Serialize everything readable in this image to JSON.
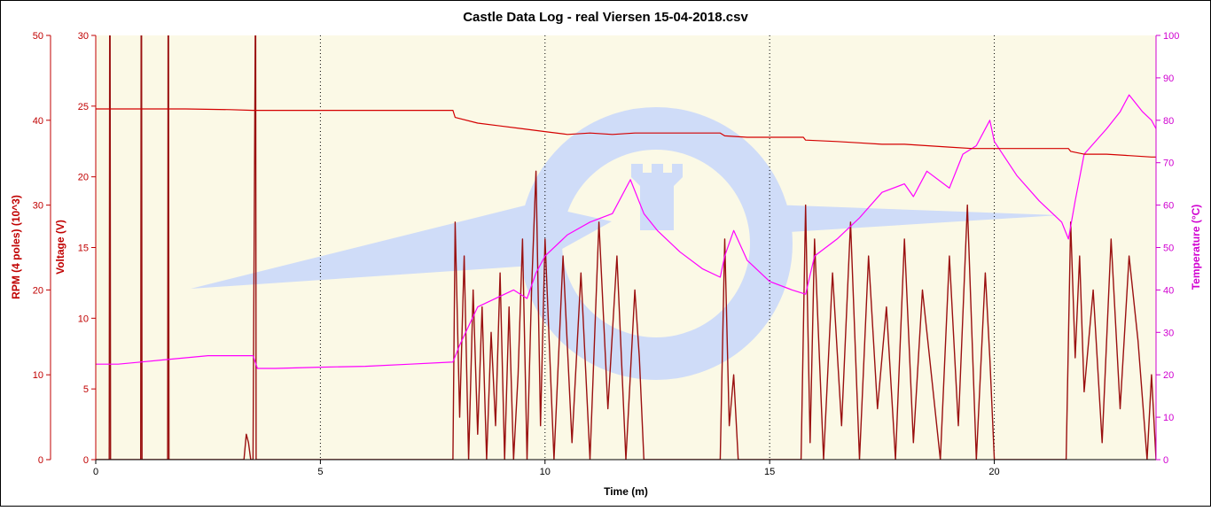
{
  "chart_data": {
    "type": "line",
    "title": "Castle Data Log - real Viersen 15-04-2018.csv",
    "xlabel": "Time (m)",
    "xlim": [
      0,
      23.6
    ],
    "x_ticks": [
      "0",
      "5",
      "10",
      "15",
      "20"
    ],
    "axes": {
      "rpm": {
        "label": "RPM (4 poles) (10^3)",
        "lim": [
          0,
          50
        ],
        "ticks": [
          "0",
          "10",
          "20",
          "30",
          "40",
          "50"
        ]
      },
      "voltage": {
        "label": "Voltage (V)",
        "lim": [
          0,
          30
        ],
        "ticks": [
          "0",
          "5",
          "10",
          "15",
          "20",
          "25",
          "30"
        ]
      },
      "temperature": {
        "label": "Temperature (°C)",
        "lim": [
          0,
          100
        ],
        "ticks": [
          "0",
          "10",
          "20",
          "30",
          "40",
          "50",
          "60",
          "70",
          "80",
          "90",
          "100"
        ]
      }
    },
    "grid": "vertical dotted at major x ticks",
    "colors": {
      "voltage": "#d40000",
      "rpm": "#9a1010",
      "temperature": "#ff00ff",
      "axis_red": "#c00000",
      "temperature_axis": "#d000d0",
      "plot_bg": "#fbf9e6",
      "watermark": "#cfdcf8"
    },
    "series": [
      {
        "key": "voltage",
        "axis": "voltage",
        "x": [
          0,
          1,
          2,
          3,
          3.5,
          4,
          5,
          6,
          7,
          7.95,
          8.0,
          8.5,
          9,
          9.5,
          10,
          10.5,
          11,
          11.5,
          12,
          12.5,
          13,
          13.5,
          13.9,
          14.0,
          14.5,
          15,
          15.5,
          15.75,
          15.8,
          16.5,
          17,
          17.5,
          18,
          18.5,
          19,
          19.5,
          20,
          20.5,
          21,
          21.5,
          21.65,
          21.7,
          22,
          22.5,
          23,
          23.5,
          23.6
        ],
        "y": [
          24.8,
          24.8,
          24.8,
          24.75,
          24.7,
          24.7,
          24.7,
          24.7,
          24.7,
          24.7,
          24.2,
          23.8,
          23.6,
          23.4,
          23.2,
          23.0,
          23.1,
          23.0,
          23.1,
          23.1,
          23.1,
          23.1,
          23.1,
          22.9,
          22.8,
          22.8,
          22.8,
          22.8,
          22.6,
          22.5,
          22.4,
          22.3,
          22.3,
          22.2,
          22.1,
          22.0,
          22.0,
          22.0,
          22.0,
          22.0,
          22.0,
          21.8,
          21.6,
          21.6,
          21.5,
          21.4,
          21.4
        ]
      },
      {
        "key": "temperature",
        "axis": "temperature",
        "x": [
          0,
          0.5,
          1,
          1.5,
          2,
          2.5,
          3,
          3.5,
          3.6,
          4,
          5,
          6,
          7,
          7.95,
          8.1,
          8.5,
          9,
          9.3,
          9.6,
          9.8,
          10.0,
          10.5,
          11,
          11.5,
          11.9,
          12.2,
          12.5,
          13,
          13.5,
          13.9,
          14.0,
          14.2,
          14.5,
          15,
          15.5,
          15.8,
          16.0,
          16.5,
          17,
          17.5,
          18,
          18.2,
          18.5,
          19,
          19.3,
          19.6,
          19.9,
          20.0,
          20.5,
          21,
          21.5,
          21.65,
          21.8,
          22,
          22.5,
          22.8,
          23.0,
          23.3,
          23.5,
          23.6
        ],
        "y": [
          22.5,
          22.5,
          23.0,
          23.5,
          24.0,
          24.5,
          24.5,
          24.5,
          21.5,
          21.5,
          21.8,
          22.0,
          22.5,
          23.0,
          27.0,
          36.0,
          38.5,
          40.0,
          38.0,
          44.0,
          48.0,
          53.0,
          56.0,
          58.0,
          66.0,
          58.0,
          54.0,
          49.0,
          45.0,
          43.0,
          48.0,
          54.0,
          47.0,
          42.0,
          40.0,
          39.0,
          48.0,
          52.0,
          57.0,
          63.0,
          65.0,
          62.0,
          68.0,
          64.0,
          72.0,
          74.0,
          80.0,
          75.0,
          67.0,
          61.0,
          56.0,
          52.0,
          61.0,
          72.0,
          78.0,
          82.0,
          86.0,
          82.0,
          80.0,
          78.0
        ]
      },
      {
        "key": "rpm",
        "axis": "rpm",
        "x": [
          0,
          0.3,
          0.31,
          0.32,
          0.33,
          1.0,
          1.01,
          1.02,
          1.03,
          1.6,
          1.61,
          1.62,
          1.63,
          3.3,
          3.35,
          3.4,
          3.45,
          3.5,
          3.55,
          3.56,
          3.57,
          7.95,
          8.0,
          8.1,
          8.2,
          8.3,
          8.4,
          8.5,
          8.6,
          8.7,
          8.8,
          8.9,
          9.0,
          9.1,
          9.2,
          9.3,
          9.4,
          9.5,
          9.6,
          9.7,
          9.8,
          9.9,
          10.0,
          10.2,
          10.4,
          10.6,
          10.8,
          11.0,
          11.2,
          11.4,
          11.6,
          11.8,
          12.0,
          12.1,
          12.2,
          13.9,
          14.0,
          14.1,
          14.2,
          14.3,
          14.4,
          15.7,
          15.8,
          15.9,
          16.0,
          16.2,
          16.4,
          16.6,
          16.8,
          17.0,
          17.2,
          17.4,
          17.6,
          17.8,
          18.0,
          18.2,
          18.4,
          18.6,
          18.8,
          19.0,
          19.2,
          19.4,
          19.6,
          19.8,
          19.9,
          20.0,
          21.6,
          21.7,
          21.8,
          21.9,
          22.0,
          22.2,
          22.4,
          22.6,
          22.8,
          23.0,
          23.2,
          23.4,
          23.5,
          23.6
        ],
        "y": [
          0,
          0,
          50,
          50,
          0,
          0,
          50,
          50,
          0,
          0,
          50,
          50,
          0,
          0,
          3,
          2,
          0,
          0,
          50,
          50,
          0,
          0,
          28,
          5,
          24,
          0,
          20,
          3,
          18,
          0,
          15,
          4,
          22,
          0,
          18,
          0,
          10,
          26,
          0,
          20,
          34,
          4,
          26,
          0,
          24,
          2,
          22,
          0,
          28,
          6,
          24,
          0,
          20,
          12,
          0,
          0,
          26,
          4,
          10,
          0,
          0,
          0,
          30,
          2,
          26,
          0,
          22,
          4,
          28,
          0,
          24,
          6,
          18,
          0,
          26,
          2,
          20,
          10,
          0,
          24,
          4,
          30,
          0,
          22,
          12,
          0,
          0,
          28,
          12,
          24,
          8,
          20,
          2,
          26,
          6,
          24,
          14,
          0,
          10,
          0
        ]
      }
    ]
  }
}
